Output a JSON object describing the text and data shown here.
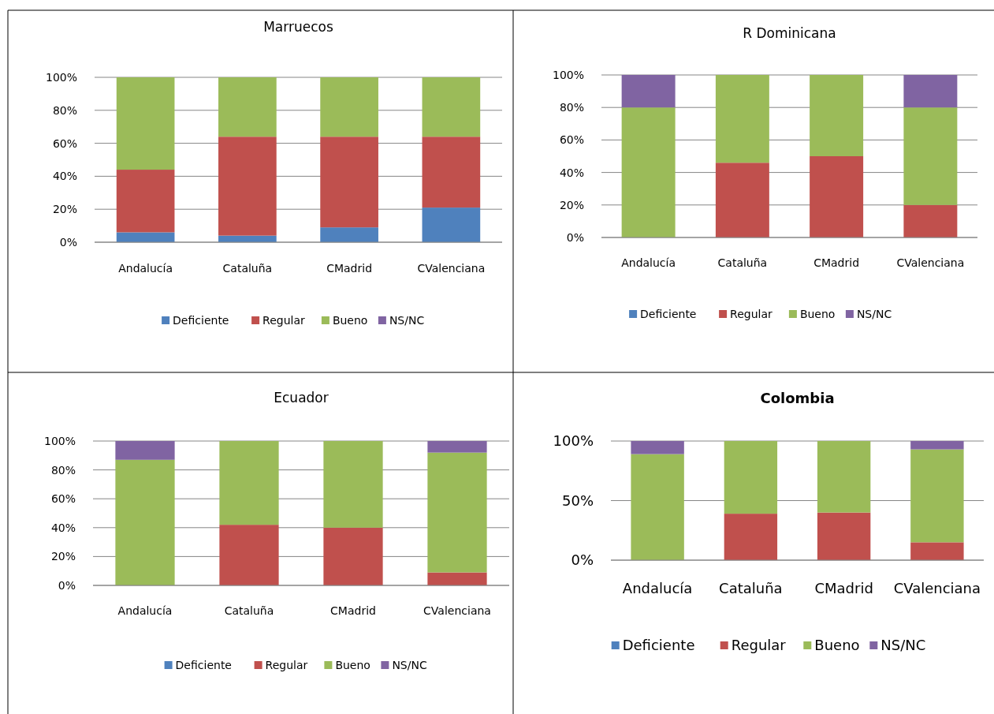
{
  "chart_data": [
    {
      "type": "bar",
      "title": "Marruecos",
      "stacked": true,
      "categories": [
        "Andalucía",
        "Cataluña",
        "CMadrid",
        "CValenciana"
      ],
      "series": [
        {
          "name": "Deficiente",
          "color": "#4f81bd",
          "values": [
            6,
            4,
            9,
            21
          ]
        },
        {
          "name": "Regular",
          "color": "#c0504d",
          "values": [
            38,
            60,
            55,
            43
          ]
        },
        {
          "name": "Bueno",
          "color": "#9bbb59",
          "values": [
            56,
            36,
            36,
            36
          ]
        },
        {
          "name": "NS/NC",
          "color": "#8064a2",
          "values": [
            0,
            0,
            0,
            0
          ]
        }
      ],
      "ylim": [
        0,
        100
      ],
      "yticks": [
        {
          "value": 0,
          "label": "0%"
        },
        {
          "value": 20,
          "label": "20%"
        },
        {
          "value": 40,
          "label": "40%"
        },
        {
          "value": 60,
          "label": "60%"
        },
        {
          "value": 80,
          "label": "80%"
        },
        {
          "value": 100,
          "label": "100%"
        }
      ],
      "grid": "y",
      "legend": "bottom"
    },
    {
      "type": "bar",
      "title": "R Dominicana",
      "stacked": true,
      "categories": [
        "Andalucía",
        "Cataluña",
        "CMadrid",
        "CValenciana"
      ],
      "series": [
        {
          "name": "Deficiente",
          "color": "#4f81bd",
          "values": [
            0,
            0,
            0,
            0
          ]
        },
        {
          "name": "Regular",
          "color": "#c0504d",
          "values": [
            0,
            46,
            50,
            20
          ]
        },
        {
          "name": "Bueno",
          "color": "#9bbb59",
          "values": [
            80,
            54,
            50,
            60
          ]
        },
        {
          "name": "NS/NC",
          "color": "#8064a2",
          "values": [
            20,
            0,
            0,
            20
          ]
        }
      ],
      "ylim": [
        0,
        100
      ],
      "yticks": [
        {
          "value": 0,
          "label": "0%"
        },
        {
          "value": 20,
          "label": "20%"
        },
        {
          "value": 40,
          "label": "40%"
        },
        {
          "value": 60,
          "label": "60%"
        },
        {
          "value": 80,
          "label": "80%"
        },
        {
          "value": 100,
          "label": "100%"
        }
      ],
      "grid": "y",
      "legend": "bottom"
    },
    {
      "type": "bar",
      "title": "Ecuador",
      "stacked": true,
      "categories": [
        "Andalucía",
        "Cataluña",
        "CMadrid",
        "CValenciana"
      ],
      "series": [
        {
          "name": "Deficiente",
          "color": "#4f81bd",
          "values": [
            0,
            0,
            0,
            0
          ]
        },
        {
          "name": "Regular",
          "color": "#c0504d",
          "values": [
            0,
            42,
            40,
            9
          ]
        },
        {
          "name": "Bueno",
          "color": "#9bbb59",
          "values": [
            87,
            58,
            60,
            83
          ]
        },
        {
          "name": "NS/NC",
          "color": "#8064a2",
          "values": [
            13,
            0,
            0,
            8
          ]
        }
      ],
      "ylim": [
        0,
        100
      ],
      "yticks": [
        {
          "value": 0,
          "label": "0%"
        },
        {
          "value": 20,
          "label": "20%"
        },
        {
          "value": 40,
          "label": "40%"
        },
        {
          "value": 60,
          "label": "60%"
        },
        {
          "value": 80,
          "label": "80%"
        },
        {
          "value": 100,
          "label": "100%"
        }
      ],
      "grid": "y",
      "legend": "bottom"
    },
    {
      "type": "bar",
      "title": "Colombia",
      "stacked": true,
      "categories": [
        "Andalucía",
        "Cataluña",
        "CMadrid",
        "CValenciana"
      ],
      "series": [
        {
          "name": "Deficiente",
          "color": "#4f81bd",
          "values": [
            0,
            0,
            0,
            0
          ]
        },
        {
          "name": "Regular",
          "color": "#c0504d",
          "values": [
            0,
            39,
            40,
            15
          ]
        },
        {
          "name": "Bueno",
          "color": "#9bbb59",
          "values": [
            89,
            61,
            60,
            78
          ]
        },
        {
          "name": "NS/NC",
          "color": "#8064a2",
          "values": [
            11,
            0,
            0,
            7
          ]
        }
      ],
      "ylim": [
        0,
        100
      ],
      "yticks": [
        {
          "value": 0,
          "label": "0%"
        },
        {
          "value": 50,
          "label": "50%"
        },
        {
          "value": 100,
          "label": "100%"
        }
      ],
      "grid": "y",
      "legend": "bottom"
    }
  ]
}
